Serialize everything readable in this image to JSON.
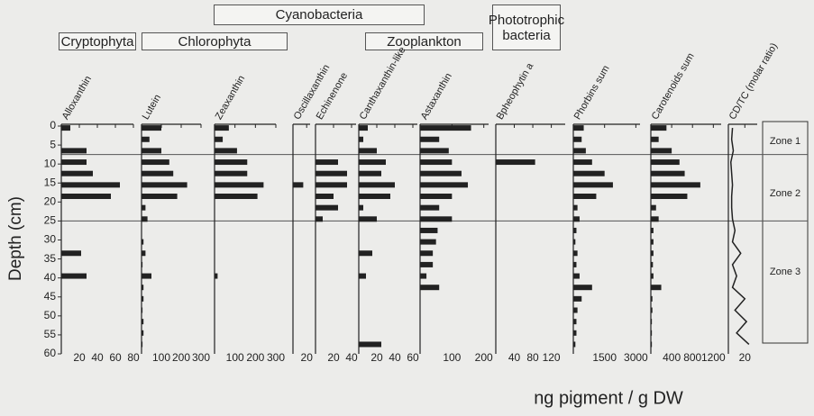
{
  "groups": [
    "Cryptophyta",
    "Chlorophyta",
    "Cyanobacteria",
    "Zooplankton",
    "Phototrophic bacteria"
  ],
  "xlabel": "ng pigment / g DW",
  "depth_axis": {
    "label": "Depth (cm)",
    "ylim": [
      0,
      60
    ],
    "yticks": [
      0,
      5,
      10,
      15,
      20,
      25,
      30,
      35,
      40,
      45,
      50,
      55,
      60
    ],
    "values": [
      0.5,
      3.5,
      6.5,
      9.5,
      12.5,
      15.5,
      18.5,
      21.5,
      24.5,
      27.5,
      30.5,
      33.5,
      36.5,
      39.5,
      42.5,
      45.5,
      48.5,
      51.5,
      54.5,
      57.5
    ]
  },
  "zones": [
    "Zone 1",
    "Zone 2",
    "Zone 3"
  ],
  "zone_boundaries": [
    7.5,
    25
  ],
  "chart_data": [
    {
      "type": "bar",
      "title": "Alloxanthin",
      "color": "#222222",
      "xlim": [
        0,
        80
      ],
      "xticks": [
        20,
        40,
        60,
        80
      ],
      "values": [
        10,
        0,
        28,
        28,
        35,
        65,
        55,
        0,
        0,
        0,
        0,
        22,
        0,
        28,
        0,
        0,
        0,
        0,
        0,
        0
      ]
    },
    {
      "type": "bar",
      "title": "Lutein",
      "color": "#222222",
      "xlim": [
        0,
        300
      ],
      "xticks": [
        100,
        200,
        300
      ],
      "values": [
        100,
        40,
        100,
        140,
        160,
        230,
        180,
        20,
        30,
        0,
        10,
        20,
        5,
        50,
        10,
        10,
        5,
        10,
        10,
        5
      ]
    },
    {
      "type": "bar",
      "title": "Zeaxanthin",
      "color": "#222222",
      "xlim": [
        0,
        300
      ],
      "xticks": [
        100,
        200,
        300
      ],
      "values": [
        70,
        40,
        110,
        160,
        160,
        240,
        210,
        0,
        0,
        0,
        0,
        0,
        0,
        15,
        0,
        0,
        0,
        0,
        0,
        0
      ]
    },
    {
      "type": "bar",
      "title": "Oscillaxanthin",
      "color": "#222222",
      "xlim": [
        0,
        25
      ],
      "xticks": [
        20
      ],
      "values": [
        0,
        0,
        0,
        0,
        0,
        15,
        0,
        0,
        0,
        0,
        0,
        0,
        0,
        0,
        0,
        0,
        0,
        0,
        0,
        0
      ]
    },
    {
      "type": "bar",
      "title": "Echinenone",
      "color": "#222222",
      "xlim": [
        0,
        45
      ],
      "xticks": [
        20,
        40
      ],
      "values": [
        0,
        0,
        0,
        25,
        35,
        35,
        20,
        25,
        8,
        0,
        0,
        0,
        0,
        0,
        0,
        0,
        0,
        0,
        0,
        0
      ]
    },
    {
      "type": "bar",
      "title": "Canthaxanthin-like",
      "color": "#222222",
      "xlim": [
        0,
        65
      ],
      "xticks": [
        20,
        40,
        60
      ],
      "values": [
        10,
        5,
        20,
        30,
        25,
        40,
        35,
        5,
        20,
        0,
        0,
        15,
        0,
        8,
        0,
        0,
        0,
        0,
        0,
        25
      ]
    },
    {
      "type": "bar",
      "title": "Astaxanthin",
      "color": "#222222",
      "xlim": [
        0,
        215
      ],
      "xticks": [
        100,
        200
      ],
      "values": [
        160,
        60,
        90,
        100,
        130,
        150,
        100,
        60,
        100,
        55,
        50,
        40,
        40,
        20,
        60,
        0,
        0,
        0,
        0,
        0
      ]
    },
    {
      "type": "bar",
      "title": "Bpheophytin a",
      "color": "#222222",
      "xlim": [
        0,
        150
      ],
      "xticks": [
        40,
        80,
        120
      ],
      "values": [
        0,
        0,
        0,
        85,
        0,
        0,
        0,
        0,
        0,
        0,
        0,
        0,
        0,
        0,
        0,
        0,
        0,
        0,
        0,
        0
      ]
    },
    {
      "type": "bar",
      "title": "Phorbins sum",
      "color": "#222222",
      "xlim": [
        0,
        3200
      ],
      "xticks": [
        1500,
        3000
      ],
      "values": [
        500,
        400,
        600,
        900,
        1500,
        1900,
        1100,
        200,
        300,
        150,
        100,
        200,
        150,
        300,
        900,
        400,
        200,
        150,
        150,
        100
      ]
    },
    {
      "type": "bar",
      "title": "Carotenoids sum",
      "color": "#222222",
      "xlim": [
        0,
        1350
      ],
      "xticks": [
        400,
        800,
        1200
      ],
      "values": [
        300,
        150,
        400,
        550,
        650,
        950,
        700,
        100,
        150,
        50,
        50,
        50,
        40,
        50,
        200,
        30,
        30,
        20,
        20,
        20
      ]
    },
    {
      "type": "line",
      "title": "CD/TC (molar ratio)",
      "color": "#222222",
      "xlim": [
        0,
        35
      ],
      "xticks": [
        20
      ],
      "values": [
        5,
        4,
        6,
        3,
        4,
        5,
        4,
        4,
        5,
        8,
        5,
        15,
        5,
        10,
        5,
        20,
        8,
        22,
        10,
        25
      ]
    }
  ]
}
